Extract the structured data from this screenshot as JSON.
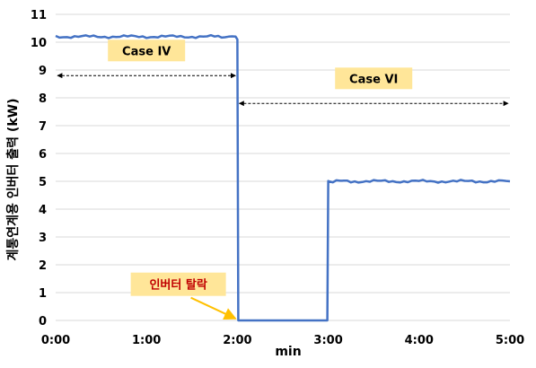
{
  "chart_data": {
    "type": "line",
    "xlabel": "min",
    "ylabel": "계통연계용 인버터 출력 (kW)",
    "xlim": [
      0,
      5
    ],
    "ylim": [
      0,
      11
    ],
    "x_ticks": [
      {
        "value": 0,
        "label": "0:00"
      },
      {
        "value": 1,
        "label": "1:00"
      },
      {
        "value": 2,
        "label": "2:00"
      },
      {
        "value": 3,
        "label": "3:00"
      },
      {
        "value": 4,
        "label": "4:00"
      },
      {
        "value": 5,
        "label": "5:00"
      }
    ],
    "y_ticks": [
      0,
      1,
      2,
      3,
      4,
      5,
      6,
      7,
      8,
      9,
      10,
      11
    ],
    "grid": "horizontal",
    "line_color": "#4472C4",
    "series": [
      {
        "x": [
          0,
          0.25,
          0.5,
          0.75,
          1.0,
          1.25,
          1.5,
          1.75,
          1.98,
          2.0,
          2.01,
          2.5,
          2.99,
          3.0,
          3.01,
          3.25,
          3.5,
          3.75,
          4.0,
          4.25,
          4.5,
          4.75,
          5.0
        ],
        "y": [
          10.2,
          10.2,
          10.2,
          10.2,
          10.2,
          10.2,
          10.2,
          10.2,
          10.2,
          10.1,
          0,
          0,
          0,
          5.0,
          5.0,
          5.0,
          5.0,
          5.0,
          5.0,
          5.0,
          5.0,
          5.0,
          5.0
        ]
      }
    ],
    "annotations": [
      {
        "text": "Case IV",
        "x_from": 0,
        "x_to": 2.0,
        "y": 8.8,
        "label_y": 9.7,
        "color": "#000000",
        "bg": "#FFE699"
      },
      {
        "text": "Case VI",
        "x_from": 2.0,
        "x_to": 5.0,
        "y": 7.8,
        "label_y": 8.7,
        "color": "#000000",
        "bg": "#FFE699"
      },
      {
        "text": "인버터 탈락",
        "point_x": 2.0,
        "point_y": 0,
        "label_x": 1.35,
        "label_y": 1.3,
        "color": "#C00000",
        "bg": "#FFE699",
        "arrow_color": "#FFC000"
      }
    ]
  }
}
